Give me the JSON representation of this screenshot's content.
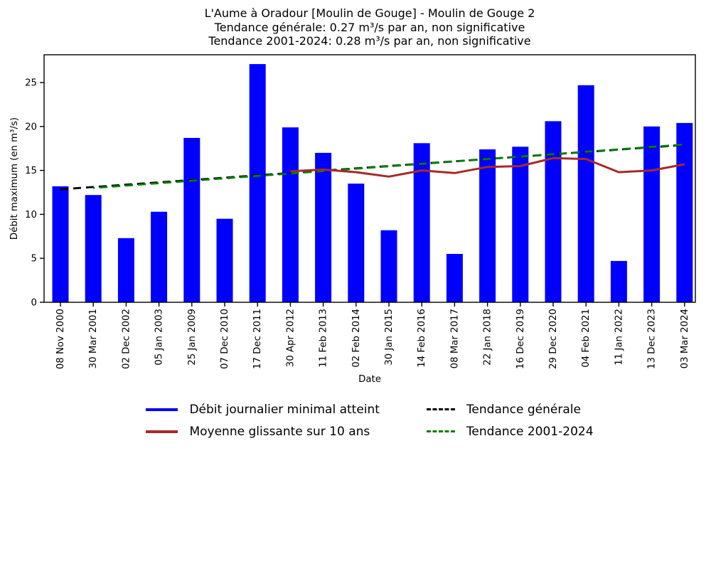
{
  "chart_data": {
    "type": "bar",
    "title_lines": [
      "L'Aume à Oradour [Moulin de Gouge] - Moulin de Gouge 2",
      "Tendance générale: 0.27 m³/s par an, non significative",
      "Tendance 2001-2024: 0.28 m³/s par an, non significative"
    ],
    "xlabel": "Date",
    "ylabel": "Débit maximum (en m³/s)",
    "ylim": [
      0,
      28.16
    ],
    "yticks": [
      0,
      5,
      10,
      15,
      20,
      25
    ],
    "grid": false,
    "legend_position": "below-chart, 2 columns, no frame",
    "background_color": "#ffffff",
    "axis_color": "#000000",
    "categories": [
      "08 Nov 2000",
      "30 Mar 2001",
      "02 Dec 2002",
      "05 Jan 2003",
      "25 Jan 2009",
      "07 Dec 2010",
      "17 Dec 2011",
      "30 Apr 2012",
      "11 Feb 2013",
      "02 Feb 2014",
      "30 Jan 2015",
      "14 Feb 2016",
      "08 Mar 2017",
      "22 Jan 2018",
      "16 Dec 2019",
      "29 Dec 2020",
      "04 Feb 2021",
      "11 Jan 2022",
      "13 Dec 2023",
      "03 Mar 2024"
    ],
    "series": [
      {
        "name": "Débit journalier minimal atteint",
        "kind": "bar",
        "color": "#0000ff",
        "values": [
          13.2,
          12.2,
          7.3,
          10.3,
          18.7,
          9.5,
          27.1,
          19.9,
          17.0,
          13.5,
          8.2,
          18.1,
          5.5,
          17.4,
          17.7,
          20.6,
          24.7,
          4.7,
          20.0,
          20.4
        ]
      },
      {
        "name": "Moyenne glissante sur 10 ans",
        "kind": "line",
        "color": "#a52a2a",
        "start_index": 7,
        "values": [
          14.9,
          15.1,
          14.8,
          14.3,
          15.0,
          14.7,
          15.4,
          15.5,
          16.4,
          16.3,
          14.8,
          15.0,
          15.7
        ]
      },
      {
        "name": "Tendance générale",
        "kind": "dashed-line",
        "color": "#000000",
        "points": [
          {
            "index": 0,
            "value": 12.85
          },
          {
            "index": 19,
            "value": 17.9
          }
        ]
      },
      {
        "name": "Tendance 2001-2024",
        "kind": "dashed-line",
        "color": "#008000",
        "points": [
          {
            "index": 1,
            "value": 13.0
          },
          {
            "index": 19,
            "value": 17.95
          }
        ]
      }
    ]
  }
}
